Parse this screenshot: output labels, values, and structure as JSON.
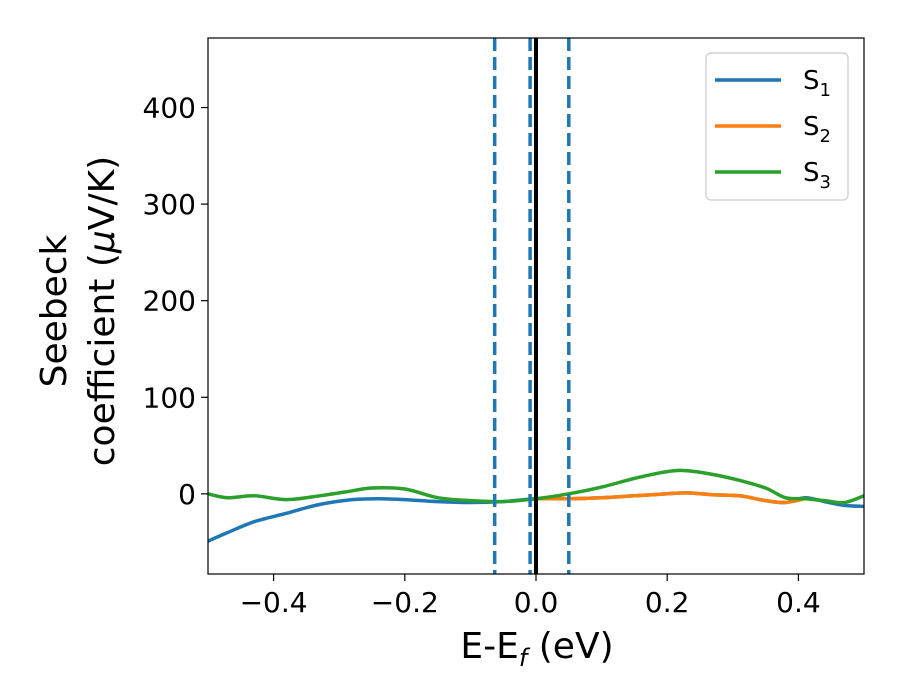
{
  "chart_data": {
    "type": "line",
    "xlabel": "E-E",
    "xlabel_sub": "f",
    "xlabel_unit": " (eV)",
    "ylabel_line1": "Seebeck",
    "ylabel_line2": "coefficient  (",
    "ylabel_mu": "μ",
    "ylabel_unit": "V/K)",
    "xlim": [
      -0.5,
      0.5
    ],
    "ylim": [
      -83,
      472
    ],
    "xticks": [
      -0.4,
      -0.2,
      0.0,
      0.2,
      0.4
    ],
    "xtick_labels": [
      "−0.4",
      "−0.2",
      "0.0",
      "0.2",
      "0.4"
    ],
    "yticks": [
      0,
      100,
      200,
      300,
      400
    ],
    "ytick_labels": [
      "0",
      "100",
      "200",
      "300",
      "400"
    ],
    "grid": false,
    "legend_position": "top-right",
    "vlines": [
      {
        "x": -0.063,
        "style": "dashed",
        "color": "#1f77b4"
      },
      {
        "x": -0.009,
        "style": "dashed",
        "color": "#1f77b4"
      },
      {
        "x": 0.05,
        "style": "dashed",
        "color": "#1f77b4"
      },
      {
        "x": 0.0,
        "style": "solid",
        "color": "#000000"
      }
    ],
    "series": [
      {
        "name": "S",
        "sub": "1",
        "color": "#1f77b4",
        "x": [
          -0.5,
          -0.47,
          -0.43,
          -0.38,
          -0.33,
          -0.28,
          -0.24,
          -0.2,
          -0.15,
          -0.1,
          -0.05,
          0.0,
          0.05,
          0.1,
          0.15,
          0.2,
          0.23,
          0.27,
          0.31,
          0.35,
          0.38,
          0.41,
          0.44,
          0.47,
          0.5
        ],
        "y": [
          -49,
          -40,
          -29,
          -20,
          -11,
          -6,
          -5,
          -6,
          -8,
          -9,
          -8,
          -5,
          -5,
          -4,
          -2,
          0,
          1,
          -1,
          -2,
          -7,
          -9,
          -4,
          -8,
          -12,
          -13
        ]
      },
      {
        "name": "S",
        "sub": "2",
        "color": "#ff7f0e",
        "x": [
          0.0,
          0.05,
          0.1,
          0.15,
          0.2,
          0.23,
          0.27,
          0.31,
          0.35,
          0.38,
          0.41
        ],
        "y": [
          -5,
          -5,
          -4,
          -2,
          0,
          1,
          -1,
          -2,
          -7,
          -9,
          -5
        ]
      },
      {
        "name": "S",
        "sub": "3",
        "color": "#2ca02c",
        "x": [
          -0.5,
          -0.47,
          -0.43,
          -0.38,
          -0.33,
          -0.29,
          -0.25,
          -0.2,
          -0.15,
          -0.1,
          -0.05,
          0.0,
          0.05,
          0.1,
          0.15,
          0.2,
          0.23,
          0.27,
          0.31,
          0.35,
          0.38,
          0.41,
          0.44,
          0.47,
          0.5
        ],
        "y": [
          0,
          -4,
          -2,
          -6,
          -2,
          2,
          6,
          5,
          -4,
          -7,
          -8,
          -5,
          0,
          7,
          16,
          23,
          24,
          20,
          14,
          6,
          -4,
          -5,
          -7,
          -9,
          -2
        ]
      }
    ]
  }
}
